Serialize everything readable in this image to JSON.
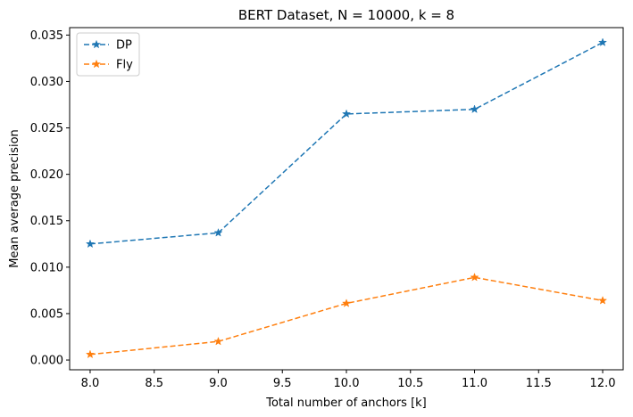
{
  "chart_data": {
    "type": "line",
    "title": "BERT Dataset, N = 10000, k = 8",
    "xlabel": "Total number of anchors [k]",
    "ylabel": "Mean average precision",
    "x": [
      8,
      9,
      10,
      11,
      12
    ],
    "xlim": [
      7.84,
      12.16
    ],
    "ylim": [
      -0.00105,
      0.0358
    ],
    "x_ticks": [
      8.0,
      8.5,
      9.0,
      9.5,
      10.0,
      10.5,
      11.0,
      11.5,
      12.0
    ],
    "x_tick_labels": [
      "8.0",
      "8.5",
      "9.0",
      "9.5",
      "10.0",
      "10.5",
      "11.0",
      "11.5",
      "12.0"
    ],
    "y_ticks": [
      0.0,
      0.005,
      0.01,
      0.015,
      0.02,
      0.025,
      0.03,
      0.035
    ],
    "y_tick_labels": [
      "0.000",
      "0.005",
      "0.010",
      "0.015",
      "0.020",
      "0.025",
      "0.030",
      "0.035"
    ],
    "grid": false,
    "legend_position": "top-left",
    "series": [
      {
        "name": "DP",
        "color": "#1f77b4",
        "marker": "star",
        "linestyle": "dashed",
        "values": [
          0.0125,
          0.0137,
          0.0265,
          0.027,
          0.0342
        ]
      },
      {
        "name": "Fly",
        "color": "#ff7f0e",
        "marker": "star",
        "linestyle": "dashed",
        "values": [
          0.0006,
          0.002,
          0.0061,
          0.0089,
          0.0064
        ]
      }
    ]
  }
}
